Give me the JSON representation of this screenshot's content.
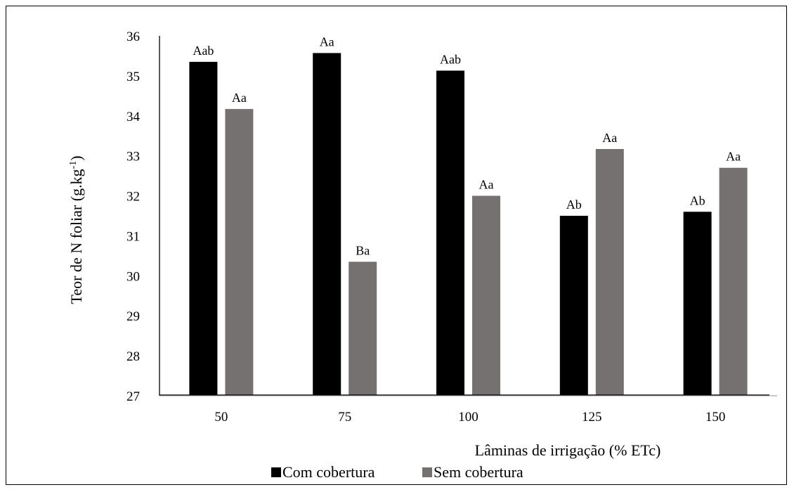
{
  "chart_data": {
    "type": "bar",
    "title": "",
    "xlabel": "Lâminas de irrigação (% ETc)",
    "ylabel": "Teor de N foliar (g.kg",
    "ylabel_superscript": "-1",
    "ylabel_close": ")",
    "ylim": [
      27,
      36
    ],
    "yticks": [
      "27",
      "28",
      "29",
      "30",
      "31",
      "32",
      "33",
      "34",
      "35",
      "36"
    ],
    "categories": [
      "50",
      "75",
      "100",
      "125",
      "150"
    ],
    "grid": false,
    "legend_position": "bottom",
    "series": [
      {
        "name": "Com cobertura",
        "color": "#000000",
        "values": [
          35.35,
          35.57,
          35.13,
          31.5,
          31.6
        ],
        "labels": [
          "Aab",
          "Aa",
          "Aab",
          "Ab",
          "Ab"
        ]
      },
      {
        "name": "Sem cobertura",
        "color": "#767171",
        "values": [
          34.17,
          30.35,
          32.0,
          33.17,
          32.7
        ],
        "labels": [
          "Aa",
          "Ba",
          "Aa",
          "Aa",
          "Aa"
        ]
      }
    ]
  }
}
